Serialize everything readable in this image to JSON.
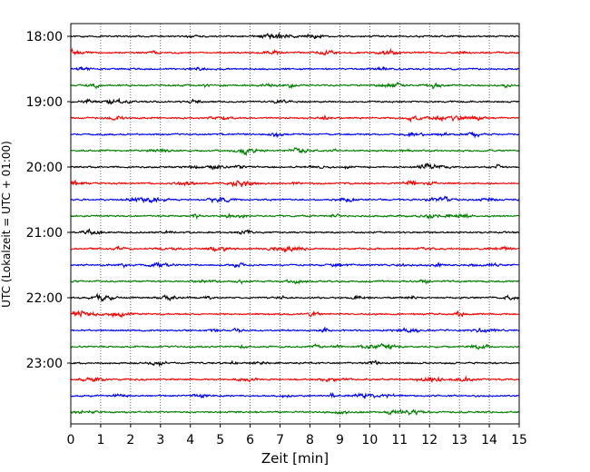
{
  "chart_data": {
    "type": "line",
    "subtype": "helicorder",
    "xlabel": "Zeit  [min]",
    "ylabel": "UTC (Lokalzeit = UTC + 01:00)",
    "xlim": [
      0,
      15
    ],
    "x_ticks": [
      "0",
      "1",
      "2",
      "3",
      "4",
      "5",
      "6",
      "7",
      "8",
      "9",
      "10",
      "11",
      "12",
      "13",
      "14",
      "15"
    ],
    "vertical_grid": "dotted",
    "y_tick_labels": [
      "18:00",
      "19:00",
      "20:00",
      "21:00",
      "22:00",
      "23:00"
    ],
    "trace_start_times": [
      "18:00",
      "18:15",
      "18:30",
      "18:45",
      "19:00",
      "19:15",
      "19:30",
      "19:45",
      "20:00",
      "20:15",
      "20:30",
      "20:45",
      "21:00",
      "21:15",
      "21:30",
      "21:45",
      "22:00",
      "22:15",
      "22:30",
      "22:45",
      "23:00",
      "23:15",
      "23:30",
      "23:45"
    ],
    "trace_minutes": 15,
    "trace_colors": [
      "#000000",
      "#ff0000",
      "#0000ff",
      "#007f00"
    ],
    "signal": "continuous low-amplitude seismic noise"
  }
}
